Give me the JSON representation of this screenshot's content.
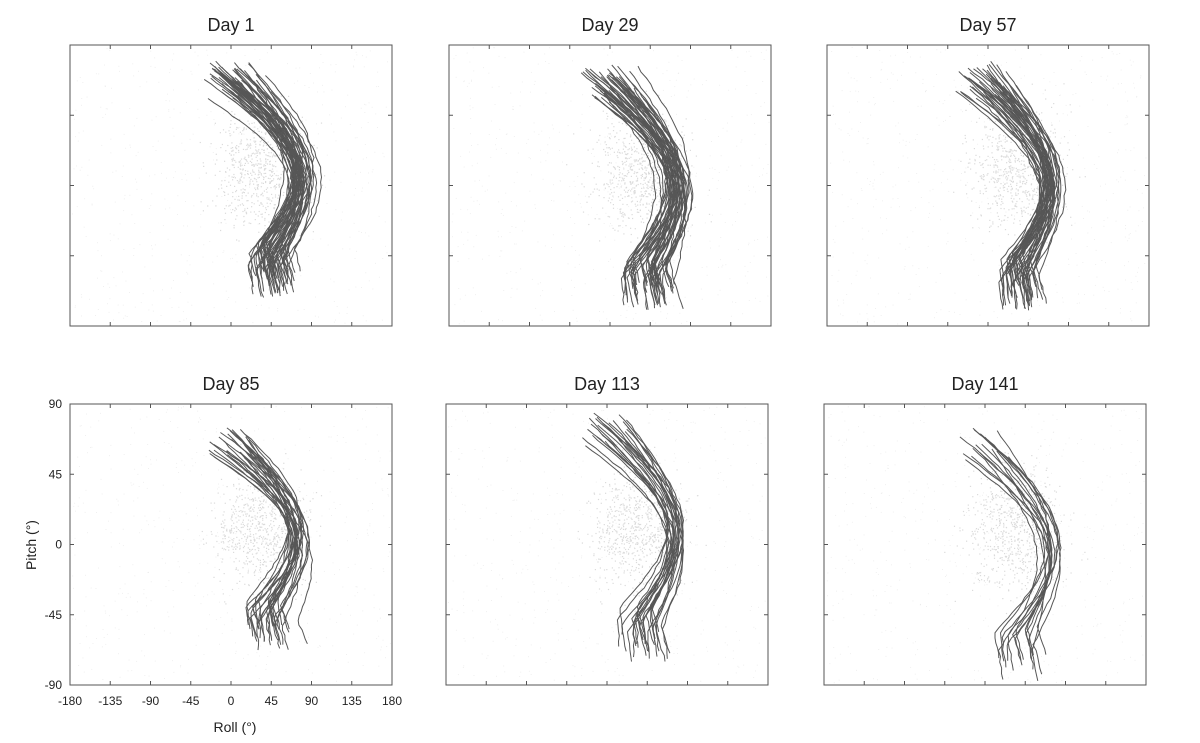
{
  "chart_data": {
    "type": "line",
    "description_axes": "Small multiples of trajectories, pitch vs roll, shared axes",
    "xlabel": "Roll (°)",
    "ylabel": "Pitch (°)",
    "xlim": [
      -180,
      180
    ],
    "ylim": [
      -90,
      90
    ],
    "xticks": [
      "-180",
      "-135",
      "-90",
      "-45",
      "0",
      "45",
      "90",
      "135",
      "180"
    ],
    "yticks": [
      "90",
      "45",
      "0",
      "-45",
      "-90"
    ],
    "grid": false,
    "colors": {
      "trajectory": "#3a3a3a",
      "density": "#9a9a9a",
      "frame": "#555555"
    },
    "panels": [
      {
        "title": "Day 1",
        "n_tracks": 55,
        "top": 80,
        "bottom": -72,
        "peak_roll": 75,
        "spread": 30
      },
      {
        "title": "Day 29",
        "n_tracks": 48,
        "top": 78,
        "bottom": -80,
        "peak_roll": 70,
        "spread": 32
      },
      {
        "title": "Day 57",
        "n_tracks": 45,
        "top": 80,
        "bottom": -80,
        "peak_roll": 65,
        "spread": 30
      },
      {
        "title": "Day 85",
        "n_tracks": 30,
        "top": 78,
        "bottom": -70,
        "peak_roll": 70,
        "spread": 28
      },
      {
        "title": "Day 113",
        "n_tracks": 25,
        "top": 85,
        "bottom": -75,
        "peak_roll": 70,
        "spread": 26
      },
      {
        "title": "Day 141",
        "n_tracks": 16,
        "top": 75,
        "bottom": -90,
        "peak_roll": 70,
        "spread": 30
      }
    ]
  }
}
